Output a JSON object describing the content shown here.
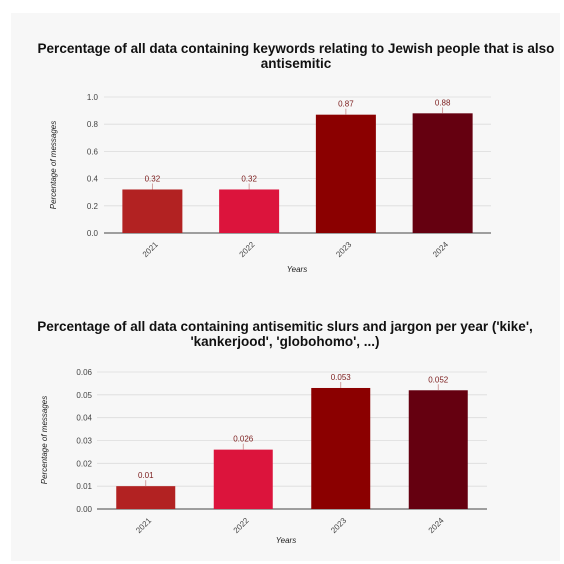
{
  "chart_data": [
    {
      "type": "bar",
      "title": [
        "Percentage of all data containing keywords relating to Jewish people that is also",
        "antisemitic"
      ],
      "xlabel": "Years",
      "ylabel": "Percentage of messages",
      "categories": [
        "2021",
        "2022",
        "2023",
        "2024"
      ],
      "values": [
        0.32,
        0.32,
        0.87,
        0.88
      ],
      "data_labels": [
        "0.32",
        "0.32",
        "0.87",
        "0.88"
      ],
      "yticks": [
        "0.0",
        "0.2",
        "0.4",
        "0.6",
        "0.8",
        "1.0"
      ],
      "ylim": [
        0,
        1.0
      ],
      "grid": true,
      "colors": [
        "#b22222",
        "#dc143c",
        "#8b0000",
        "#650010"
      ]
    },
    {
      "type": "bar",
      "title": [
        "Percentage of all data containing antisemitic slurs and jargon per year ('kike',",
        "'kankerjood', 'globohomo', ...)"
      ],
      "xlabel": "Years",
      "ylabel": "Percentage of messages",
      "categories": [
        "2021",
        "2022",
        "2023",
        "2024"
      ],
      "values": [
        0.01,
        0.026,
        0.053,
        0.052
      ],
      "data_labels": [
        "0.01",
        "0.026",
        "0.053",
        "0.052"
      ],
      "yticks": [
        "0.00",
        "0.01",
        "0.02",
        "0.03",
        "0.04",
        "0.05",
        "0.06"
      ],
      "ylim": [
        0,
        0.06
      ],
      "grid": true,
      "colors": [
        "#b22222",
        "#dc143c",
        "#8b0000",
        "#650010"
      ]
    }
  ]
}
